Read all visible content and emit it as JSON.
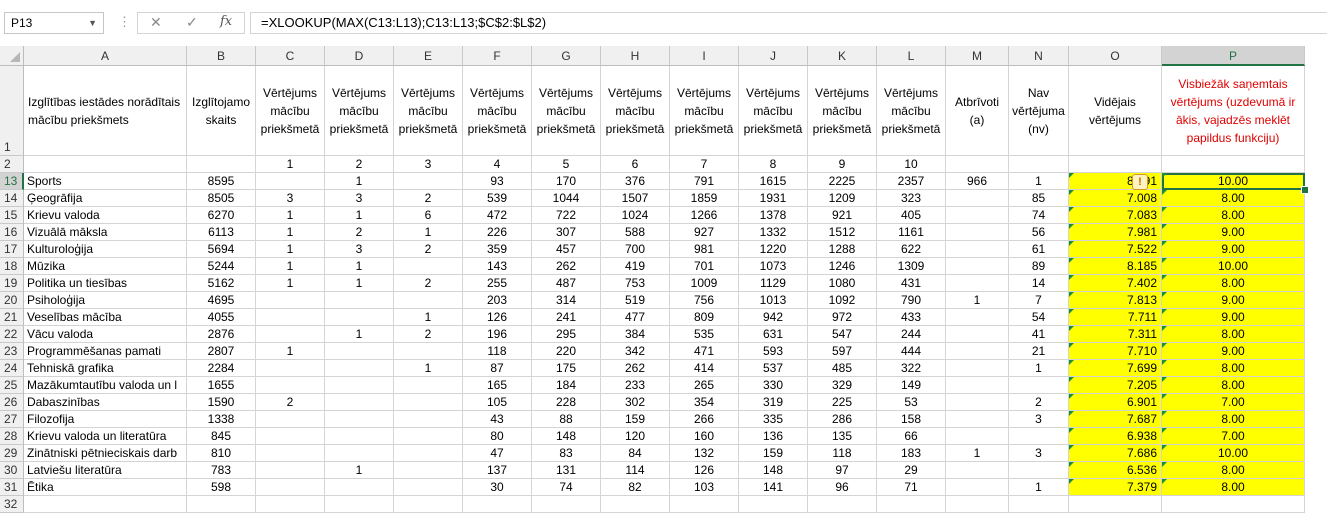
{
  "formula_bar": {
    "name_box": "P13",
    "cancel_icon": "✕",
    "enter_icon": "✓",
    "fx_label": "fx",
    "formula": "=XLOOKUP(MAX(C13:L13);C13:L13;$C$2:$L$2)"
  },
  "columns": [
    "A",
    "B",
    "C",
    "D",
    "E",
    "F",
    "G",
    "H",
    "I",
    "J",
    "K",
    "L",
    "M",
    "N",
    "O",
    "P"
  ],
  "row_numbers": [
    "1",
    "2",
    "13",
    "14",
    "15",
    "16",
    "17",
    "18",
    "19",
    "20",
    "21",
    "22",
    "23",
    "24",
    "25",
    "26",
    "27",
    "28",
    "29",
    "30",
    "31",
    "32"
  ],
  "headers": {
    "A": "Izglītības iestādes norādītais mācību priekšmets",
    "B": "Izglītojamo skaits",
    "C": "Vērtējums mācību priekšmetā",
    "D": "Vērtējums mācību priekšmetā",
    "E": "Vērtējums mācību priekšmetā",
    "F": "Vērtējums mācību priekšmetā",
    "G": "Vērtējums mācību priekšmetā",
    "H": "Vērtējums mācību priekšmetā",
    "I": "Vērtējums mācību priekšmetā",
    "J": "Vērtējums mācību priekšmetā",
    "K": "Vērtējums mācību priekšmetā",
    "L": "Vērtējums mācību priekšmetā",
    "M": "Atbrīvoti (a)",
    "N": "Nav vērtējuma (nv)",
    "O": "Vidējais vērtējums",
    "P": "Visbiežāk saņemtais vērtējums (uzdevumā ir ākis, vajadzēs meklēt papildus funkciju)"
  },
  "grade_numbers": [
    "1",
    "2",
    "3",
    "4",
    "5",
    "6",
    "7",
    "8",
    "9",
    "10"
  ],
  "rows": [
    {
      "A": "Sports",
      "B": "8595",
      "C": "",
      "D": "1",
      "E": "",
      "F": "93",
      "G": "170",
      "H": "376",
      "I": "791",
      "J": "1615",
      "K": "2225",
      "L": "2357",
      "M": "966",
      "N": "1",
      "O": "8.591",
      "P": "10.00"
    },
    {
      "A": "Ģeogrāfija",
      "B": "8505",
      "C": "3",
      "D": "3",
      "E": "2",
      "F": "539",
      "G": "1044",
      "H": "1507",
      "I": "1859",
      "J": "1931",
      "K": "1209",
      "L": "323",
      "M": "",
      "N": "85",
      "O": "7.008",
      "P": "8.00"
    },
    {
      "A": "Krievu valoda",
      "B": "6270",
      "C": "1",
      "D": "1",
      "E": "6",
      "F": "472",
      "G": "722",
      "H": "1024",
      "I": "1266",
      "J": "1378",
      "K": "921",
      "L": "405",
      "M": "",
      "N": "74",
      "O": "7.083",
      "P": "8.00"
    },
    {
      "A": "Vizuālā māksla",
      "B": "6113",
      "C": "1",
      "D": "2",
      "E": "1",
      "F": "226",
      "G": "307",
      "H": "588",
      "I": "927",
      "J": "1332",
      "K": "1512",
      "L": "1161",
      "M": "",
      "N": "56",
      "O": "7.981",
      "P": "9.00"
    },
    {
      "A": "Kulturoloģija",
      "B": "5694",
      "C": "1",
      "D": "3",
      "E": "2",
      "F": "359",
      "G": "457",
      "H": "700",
      "I": "981",
      "J": "1220",
      "K": "1288",
      "L": "622",
      "M": "",
      "N": "61",
      "O": "7.522",
      "P": "9.00"
    },
    {
      "A": "Mūzika",
      "B": "5244",
      "C": "1",
      "D": "1",
      "E": "",
      "F": "143",
      "G": "262",
      "H": "419",
      "I": "701",
      "J": "1073",
      "K": "1246",
      "L": "1309",
      "M": "",
      "N": "89",
      "O": "8.185",
      "P": "10.00"
    },
    {
      "A": "Politika un tiesības",
      "B": "5162",
      "C": "1",
      "D": "1",
      "E": "2",
      "F": "255",
      "G": "487",
      "H": "753",
      "I": "1009",
      "J": "1129",
      "K": "1080",
      "L": "431",
      "M": "",
      "N": "14",
      "O": "7.402",
      "P": "8.00"
    },
    {
      "A": "Psiholoģija",
      "B": "4695",
      "C": "",
      "D": "",
      "E": "",
      "F": "203",
      "G": "314",
      "H": "519",
      "I": "756",
      "J": "1013",
      "K": "1092",
      "L": "790",
      "M": "1",
      "N": "7",
      "O": "7.813",
      "P": "9.00"
    },
    {
      "A": "Veselības mācība",
      "B": "4055",
      "C": "",
      "D": "",
      "E": "1",
      "F": "126",
      "G": "241",
      "H": "477",
      "I": "809",
      "J": "942",
      "K": "972",
      "L": "433",
      "M": "",
      "N": "54",
      "O": "7.711",
      "P": "9.00"
    },
    {
      "A": "Vācu valoda",
      "B": "2876",
      "C": "",
      "D": "1",
      "E": "2",
      "F": "196",
      "G": "295",
      "H": "384",
      "I": "535",
      "J": "631",
      "K": "547",
      "L": "244",
      "M": "",
      "N": "41",
      "O": "7.311",
      "P": "8.00"
    },
    {
      "A": "Programmēšanas pamati",
      "B": "2807",
      "C": "1",
      "D": "",
      "E": "",
      "F": "118",
      "G": "220",
      "H": "342",
      "I": "471",
      "J": "593",
      "K": "597",
      "L": "444",
      "M": "",
      "N": "21",
      "O": "7.710",
      "P": "9.00"
    },
    {
      "A": "Tehniskā grafika",
      "B": "2284",
      "C": "",
      "D": "",
      "E": "1",
      "F": "87",
      "G": "175",
      "H": "262",
      "I": "414",
      "J": "537",
      "K": "485",
      "L": "322",
      "M": "",
      "N": "1",
      "O": "7.699",
      "P": "8.00"
    },
    {
      "A": "Mazākumtautību valoda un l",
      "B": "1655",
      "C": "",
      "D": "",
      "E": "",
      "F": "165",
      "G": "184",
      "H": "233",
      "I": "265",
      "J": "330",
      "K": "329",
      "L": "149",
      "M": "",
      "N": "",
      "O": "7.205",
      "P": "8.00"
    },
    {
      "A": "Dabaszinības",
      "B": "1590",
      "C": "2",
      "D": "",
      "E": "",
      "F": "105",
      "G": "228",
      "H": "302",
      "I": "354",
      "J": "319",
      "K": "225",
      "L": "53",
      "M": "",
      "N": "2",
      "O": "6.901",
      "P": "7.00"
    },
    {
      "A": "Filozofija",
      "B": "1338",
      "C": "",
      "D": "",
      "E": "",
      "F": "43",
      "G": "88",
      "H": "159",
      "I": "266",
      "J": "335",
      "K": "286",
      "L": "158",
      "M": "",
      "N": "3",
      "O": "7.687",
      "P": "8.00"
    },
    {
      "A": "Krievu valoda un literatūra",
      "B": "845",
      "C": "",
      "D": "",
      "E": "",
      "F": "80",
      "G": "148",
      "H": "120",
      "I": "160",
      "J": "136",
      "K": "135",
      "L": "66",
      "M": "",
      "N": "",
      "O": "6.938",
      "P": "7.00"
    },
    {
      "A": "Zinātniski pētnieciskais darb",
      "B": "810",
      "C": "",
      "D": "",
      "E": "",
      "F": "47",
      "G": "83",
      "H": "84",
      "I": "132",
      "J": "159",
      "K": "118",
      "L": "183",
      "M": "1",
      "N": "3",
      "O": "7.686",
      "P": "10.00"
    },
    {
      "A": "Latviešu literatūra",
      "B": "783",
      "C": "",
      "D": "1",
      "E": "",
      "F": "137",
      "G": "131",
      "H": "114",
      "I": "126",
      "J": "148",
      "K": "97",
      "L": "29",
      "M": "",
      "N": "",
      "O": "6.536",
      "P": "8.00"
    },
    {
      "A": "Ētika",
      "B": "598",
      "C": "",
      "D": "",
      "E": "",
      "F": "30",
      "G": "74",
      "H": "82",
      "I": "103",
      "J": "141",
      "K": "96",
      "L": "71",
      "M": "",
      "N": "1",
      "O": "7.379",
      "P": "8.00"
    }
  ],
  "colors": {
    "highlight": "#ffff00",
    "header_red": "#e00000",
    "selection": "#217346"
  }
}
